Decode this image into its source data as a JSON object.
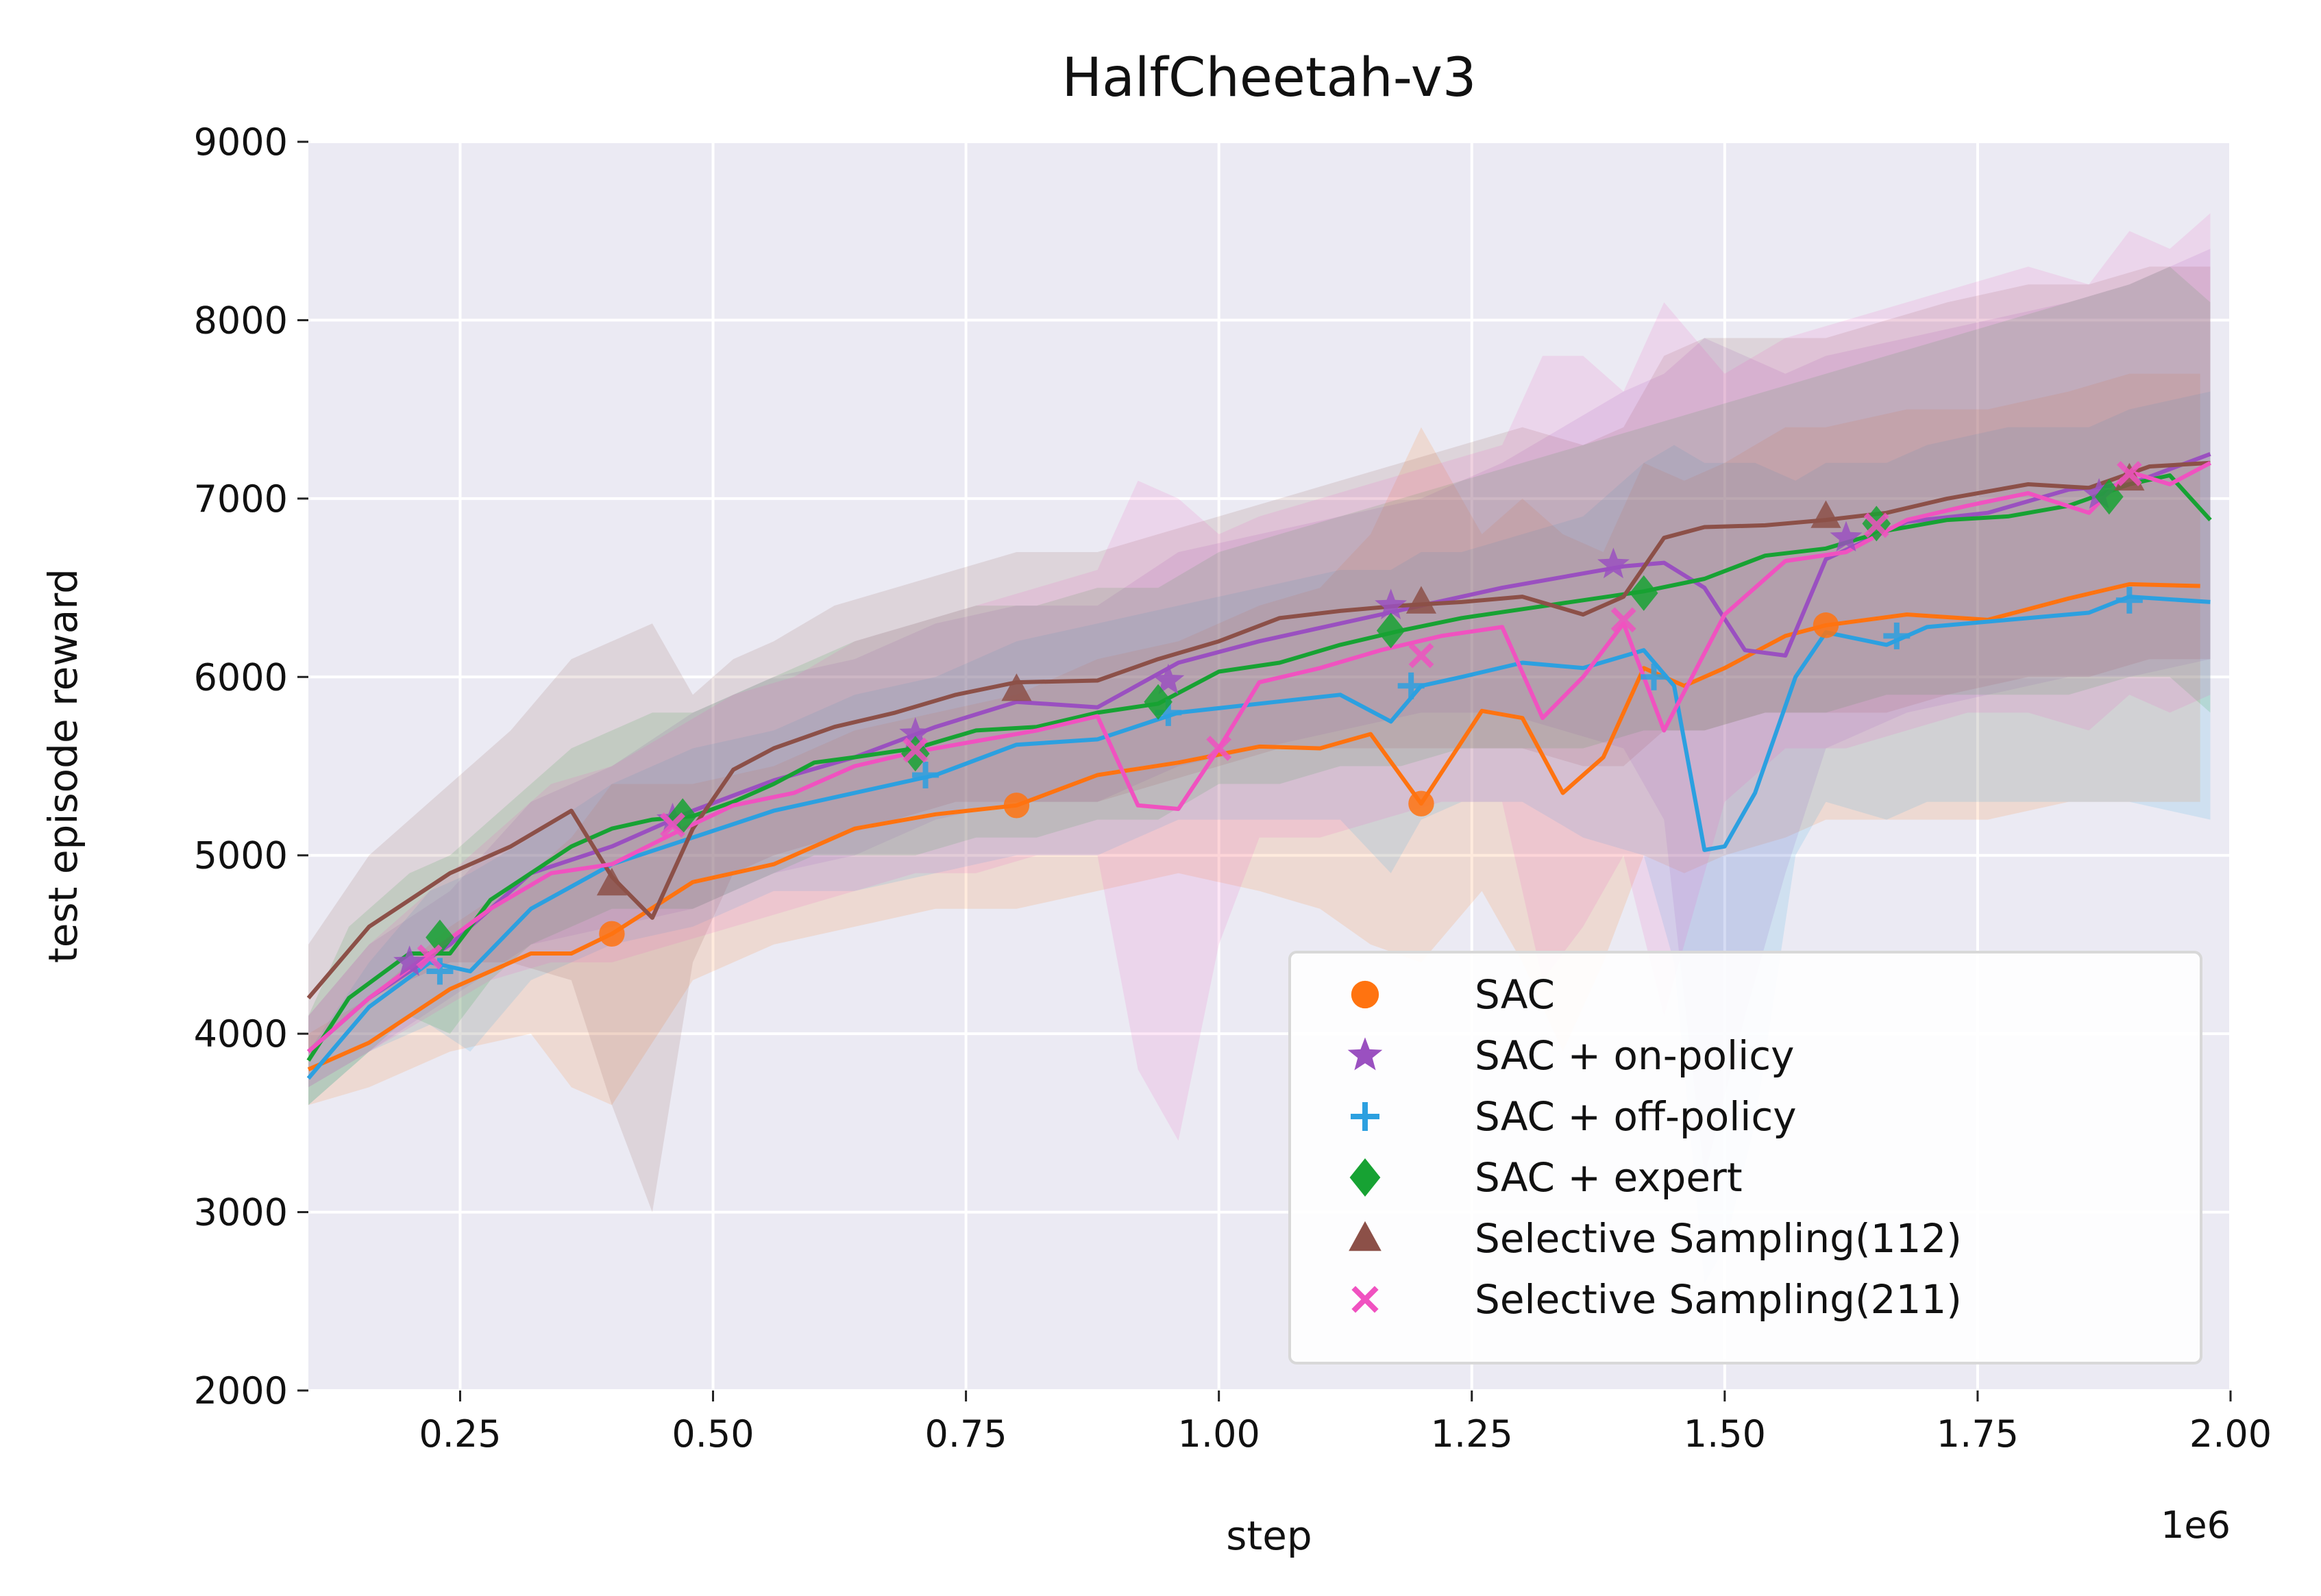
{
  "chart_data": {
    "type": "line",
    "title": "HalfCheetah-v3",
    "xlabel": "step",
    "ylabel": "test episode reward",
    "x_offset_label": "1e6",
    "xlim": [
      0.1,
      2.0
    ],
    "ylim": [
      2000,
      9000
    ],
    "xticks": [
      0.25,
      0.5,
      0.75,
      1.0,
      1.25,
      1.5,
      1.75,
      2.0
    ],
    "xtick_labels": [
      "0.25",
      "0.50",
      "0.75",
      "1.00",
      "1.25",
      "1.50",
      "1.75",
      "2.00"
    ],
    "yticks": [
      2000,
      3000,
      4000,
      5000,
      6000,
      7000,
      8000,
      9000
    ],
    "ytick_labels": [
      "2000",
      "3000",
      "4000",
      "5000",
      "6000",
      "7000",
      "8000",
      "9000"
    ],
    "grid": true,
    "background_color": "#ebeaf3",
    "legend_position": "lower-right",
    "series": [
      {
        "name": "SAC",
        "color": "#ff7310",
        "marker": "circle",
        "x": [
          0.1,
          0.16,
          0.24,
          0.32,
          0.36,
          0.4,
          0.48,
          0.56,
          0.64,
          0.72,
          0.8,
          0.88,
          0.96,
          1.04,
          1.1,
          1.15,
          1.2,
          1.26,
          1.3,
          1.34,
          1.38,
          1.42,
          1.46,
          1.5,
          1.56,
          1.6,
          1.68,
          1.76,
          1.84,
          1.9,
          1.97
        ],
        "y": [
          3800,
          3950,
          4250,
          4450,
          4450,
          4560,
          4850,
          4950,
          5150,
          5230,
          5280,
          5450,
          5520,
          5610,
          5600,
          5680,
          5290,
          5810,
          5770,
          5350,
          5550,
          6050,
          5950,
          6050,
          6230,
          6290,
          6350,
          6320,
          6440,
          6520,
          6510
        ],
        "lower": [
          3600,
          3700,
          3900,
          4000,
          3700,
          3600,
          4300,
          4500,
          4600,
          4700,
          4700,
          4800,
          4900,
          4800,
          4700,
          4500,
          4400,
          4800,
          4400,
          3900,
          4400,
          5000,
          4900,
          5000,
          5100,
          5200,
          5200,
          5200,
          5300,
          5300,
          5300
        ],
        "upper": [
          4000,
          4200,
          4600,
          4900,
          5100,
          5400,
          5400,
          5500,
          5700,
          5800,
          5900,
          6100,
          6200,
          6400,
          6500,
          6800,
          7400,
          6800,
          7000,
          6800,
          6700,
          7200,
          7100,
          7200,
          7400,
          7400,
          7500,
          7500,
          7600,
          7700,
          7700
        ],
        "markers_x": [
          0.4,
          0.8,
          1.2,
          1.6
        ],
        "markers_y": [
          4560,
          5280,
          5290,
          6290
        ]
      },
      {
        "name": "SAC + on-policy",
        "color": "#9a50c0",
        "marker": "star",
        "x": [
          0.1,
          0.16,
          0.24,
          0.32,
          0.4,
          0.48,
          0.56,
          0.64,
          0.72,
          0.8,
          0.88,
          0.96,
          1.04,
          1.12,
          1.2,
          1.28,
          1.34,
          1.4,
          1.44,
          1.48,
          1.52,
          1.56,
          1.6,
          1.68,
          1.76,
          1.84,
          1.9,
          1.98
        ],
        "y": [
          3900,
          4200,
          4500,
          4900,
          5050,
          5250,
          5420,
          5550,
          5720,
          5860,
          5830,
          6080,
          6200,
          6300,
          6400,
          6500,
          6560,
          6620,
          6640,
          6500,
          6150,
          6120,
          6660,
          6870,
          6920,
          7050,
          7080,
          7250
        ],
        "lower": [
          3700,
          3900,
          4200,
          4500,
          4600,
          4700,
          4900,
          5000,
          5200,
          5300,
          5300,
          5500,
          5600,
          5700,
          5800,
          5800,
          5700,
          5600,
          5200,
          3200,
          4100,
          4900,
          5600,
          5800,
          5900,
          6000,
          6000,
          6100
        ],
        "upper": [
          4100,
          4500,
          4800,
          5300,
          5500,
          5800,
          6000,
          6100,
          6300,
          6400,
          6400,
          6700,
          6800,
          6900,
          7000,
          7200,
          7400,
          7600,
          7700,
          7900,
          7800,
          7700,
          7800,
          7900,
          8000,
          8100,
          8200,
          8400
        ],
        "markers_x": [
          0.2,
          0.46,
          0.7,
          0.95,
          1.17,
          1.39,
          1.62,
          1.87
        ],
        "markers_y": [
          4400,
          5200,
          5680,
          5980,
          6400,
          6630,
          6780,
          7020
        ]
      },
      {
        "name": "SAC + off-policy",
        "color": "#2ca0e0",
        "marker": "plus",
        "x": [
          0.1,
          0.16,
          0.22,
          0.26,
          0.32,
          0.4,
          0.48,
          0.56,
          0.64,
          0.72,
          0.8,
          0.88,
          0.96,
          1.04,
          1.12,
          1.17,
          1.2,
          1.24,
          1.3,
          1.36,
          1.42,
          1.45,
          1.48,
          1.5,
          1.53,
          1.57,
          1.6,
          1.66,
          1.7,
          1.78,
          1.86,
          1.9,
          1.98
        ],
        "y": [
          3750,
          4150,
          4400,
          4350,
          4700,
          4950,
          5100,
          5250,
          5350,
          5450,
          5620,
          5650,
          5800,
          5850,
          5900,
          5750,
          5950,
          6000,
          6080,
          6050,
          6150,
          5950,
          5030,
          5050,
          5350,
          6000,
          6250,
          6180,
          6280,
          6320,
          6360,
          6450,
          6420
        ],
        "lower": [
          3600,
          3900,
          4050,
          3900,
          4300,
          4500,
          4600,
          4800,
          4800,
          4900,
          5000,
          5000,
          5200,
          5200,
          5200,
          4900,
          5200,
          5300,
          5300,
          5100,
          5000,
          4400,
          2600,
          2800,
          3500,
          5000,
          5300,
          5200,
          5300,
          5300,
          5300,
          5300,
          5200
        ],
        "upper": [
          3900,
          4400,
          4800,
          4900,
          5100,
          5400,
          5600,
          5700,
          5900,
          6000,
          6200,
          6300,
          6400,
          6500,
          6600,
          6600,
          6700,
          6700,
          6800,
          6900,
          7200,
          7300,
          7200,
          7200,
          7200,
          7100,
          7200,
          7200,
          7300,
          7400,
          7400,
          7500,
          7600
        ],
        "markers_x": [
          0.23,
          0.71,
          0.95,
          1.19,
          1.43,
          1.67,
          1.9
        ],
        "markers_y": [
          4350,
          5450,
          5800,
          5950,
          6000,
          6230,
          6430
        ]
      },
      {
        "name": "SAC + expert",
        "color": "#17a233",
        "marker": "diamond",
        "x": [
          0.1,
          0.14,
          0.2,
          0.24,
          0.28,
          0.32,
          0.36,
          0.4,
          0.44,
          0.48,
          0.52,
          0.56,
          0.6,
          0.64,
          0.7,
          0.76,
          0.82,
          0.88,
          0.94,
          1.0,
          1.06,
          1.12,
          1.18,
          1.24,
          1.3,
          1.36,
          1.42,
          1.48,
          1.54,
          1.6,
          1.66,
          1.72,
          1.78,
          1.84,
          1.9,
          1.94,
          1.98
        ],
        "y": [
          3850,
          4200,
          4450,
          4450,
          4750,
          4900,
          5050,
          5150,
          5200,
          5220,
          5300,
          5400,
          5520,
          5550,
          5600,
          5700,
          5720,
          5800,
          5850,
          6030,
          6080,
          6180,
          6260,
          6330,
          6380,
          6430,
          6480,
          6550,
          6680,
          6720,
          6820,
          6880,
          6900,
          6960,
          7080,
          7130,
          6880
        ],
        "lower": [
          3600,
          3800,
          4100,
          4000,
          4300,
          4500,
          4600,
          4700,
          4700,
          4700,
          4800,
          4900,
          5000,
          5000,
          5000,
          5100,
          5100,
          5200,
          5200,
          5400,
          5400,
          5500,
          5500,
          5600,
          5600,
          5600,
          5700,
          5700,
          5800,
          5800,
          5900,
          5900,
          5900,
          5900,
          6000,
          6000,
          5800
        ],
        "upper": [
          4100,
          4600,
          4900,
          5000,
          5200,
          5400,
          5600,
          5700,
          5800,
          5800,
          5900,
          6000,
          6100,
          6200,
          6300,
          6400,
          6400,
          6500,
          6500,
          6700,
          6800,
          6900,
          7000,
          7100,
          7200,
          7300,
          7400,
          7500,
          7600,
          7700,
          7800,
          7900,
          8000,
          8100,
          8200,
          8300,
          8100
        ],
        "markers_x": [
          0.23,
          0.47,
          0.7,
          0.94,
          1.17,
          1.42,
          1.65,
          1.88
        ],
        "markers_y": [
          4540,
          5220,
          5570,
          5860,
          6260,
          6470,
          6860,
          7010
        ]
      },
      {
        "name": "Selective Sampling(112)",
        "color": "#8c5048",
        "marker": "triangle",
        "x": [
          0.1,
          0.16,
          0.24,
          0.3,
          0.36,
          0.4,
          0.44,
          0.48,
          0.52,
          0.56,
          0.62,
          0.68,
          0.74,
          0.8,
          0.88,
          0.94,
          1.0,
          1.06,
          1.12,
          1.18,
          1.24,
          1.3,
          1.36,
          1.4,
          1.44,
          1.48,
          1.54,
          1.6,
          1.66,
          1.72,
          1.8,
          1.86,
          1.92,
          1.98
        ],
        "y": [
          4200,
          4600,
          4900,
          5050,
          5250,
          4880,
          4650,
          5150,
          5480,
          5600,
          5720,
          5800,
          5900,
          5970,
          5980,
          6100,
          6200,
          6330,
          6370,
          6400,
          6420,
          6450,
          6350,
          6450,
          6780,
          6840,
          6850,
          6880,
          6920,
          7000,
          7080,
          7060,
          7180,
          7200
        ],
        "lower": [
          3900,
          4200,
          4400,
          4400,
          4300,
          3600,
          3000,
          4400,
          4900,
          5000,
          5100,
          5200,
          5300,
          5300,
          5300,
          5400,
          5500,
          5600,
          5600,
          5600,
          5600,
          5600,
          5500,
          5500,
          5700,
          5700,
          5800,
          5800,
          5800,
          5900,
          6000,
          6000,
          6100,
          6100
        ],
        "upper": [
          4500,
          5000,
          5400,
          5700,
          6100,
          6200,
          6300,
          5900,
          6100,
          6200,
          6400,
          6500,
          6600,
          6700,
          6700,
          6800,
          6900,
          7000,
          7100,
          7200,
          7300,
          7400,
          7300,
          7400,
          7800,
          7900,
          7900,
          7900,
          8000,
          8100,
          8200,
          8200,
          8300,
          8300
        ],
        "markers_x": [
          0.4,
          0.8,
          1.2,
          1.6,
          1.9
        ],
        "markers_y": [
          4840,
          5930,
          6420,
          6900,
          7110
        ]
      },
      {
        "name": "Selective Sampling(211)",
        "color": "#f052c0",
        "marker": "x",
        "x": [
          0.1,
          0.16,
          0.22,
          0.28,
          0.34,
          0.4,
          0.46,
          0.52,
          0.58,
          0.64,
          0.7,
          0.76,
          0.82,
          0.88,
          0.92,
          0.96,
          1.0,
          1.04,
          1.1,
          1.16,
          1.22,
          1.28,
          1.32,
          1.36,
          1.4,
          1.44,
          1.5,
          1.56,
          1.62,
          1.68,
          1.74,
          1.8,
          1.86,
          1.9,
          1.94,
          1.98
        ],
        "y": [
          3900,
          4200,
          4450,
          4700,
          4900,
          4950,
          5120,
          5280,
          5350,
          5500,
          5580,
          5640,
          5700,
          5780,
          5280,
          5260,
          5600,
          5970,
          6050,
          6150,
          6230,
          6280,
          5770,
          6000,
          6300,
          5700,
          6350,
          6650,
          6700,
          6880,
          6960,
          7030,
          6920,
          7150,
          7080,
          7200
        ],
        "lower": [
          3700,
          3900,
          4100,
          4300,
          4400,
          4400,
          4500,
          4600,
          4700,
          4800,
          4900,
          4900,
          5000,
          5000,
          3800,
          3400,
          4500,
          5100,
          5100,
          5200,
          5300,
          5300,
          4300,
          4600,
          5000,
          4100,
          5300,
          5600,
          5600,
          5700,
          5800,
          5800,
          5700,
          5900,
          5800,
          5900
        ],
        "upper": [
          4100,
          4500,
          4800,
          5100,
          5400,
          5500,
          5700,
          5900,
          6000,
          6200,
          6300,
          6400,
          6500,
          6600,
          7100,
          7000,
          6800,
          6900,
          7000,
          7100,
          7200,
          7300,
          7800,
          7800,
          7600,
          8100,
          7700,
          7900,
          8000,
          8100,
          8200,
          8300,
          8200,
          8500,
          8400,
          8600
        ],
        "markers_x": [
          0.22,
          0.46,
          0.7,
          1.0,
          1.2,
          1.4,
          1.65,
          1.9
        ],
        "markers_y": [
          4430,
          5170,
          5590,
          5600,
          6120,
          6320,
          6850,
          7140
        ]
      }
    ]
  }
}
